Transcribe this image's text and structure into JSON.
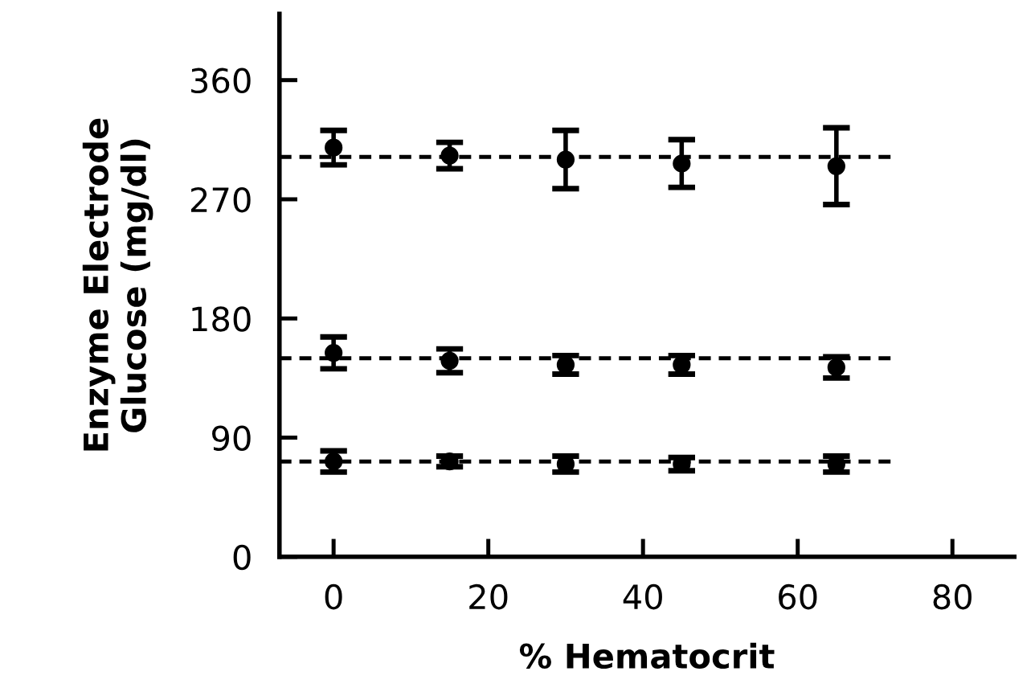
{
  "chart_data": {
    "type": "scatter",
    "xlabel": "% Hematocrit",
    "ylabel": "Enzyme Electrode\nGlucose (mg/dl)",
    "xlim": [
      -7,
      88
    ],
    "ylim": [
      0,
      410
    ],
    "xticks": [
      0,
      20,
      40,
      60,
      80
    ],
    "yticks": [
      0,
      90,
      180,
      270,
      360
    ],
    "grid": false,
    "legend": false,
    "marker": "circle",
    "series": [
      {
        "color": "#000000",
        "x": [
          0,
          15,
          30,
          45,
          65
        ],
        "values": [
          309,
          303,
          300,
          297,
          295
        ],
        "errors": [
          13,
          10,
          22,
          18,
          29
        ]
      },
      {
        "color": "#000000",
        "x": [
          0,
          15,
          30,
          45,
          65
        ],
        "values": [
          154,
          148,
          145,
          145,
          143
        ],
        "errors": [
          12,
          9,
          7,
          7,
          8
        ]
      },
      {
        "color": "#000000",
        "x": [
          0,
          15,
          30,
          45,
          65
        ],
        "values": [
          72,
          72,
          70,
          70,
          70
        ],
        "errors": [
          8,
          4,
          6,
          5,
          6
        ]
      },
      {
        "type": "line",
        "color": "#000000",
        "x": [
          -7,
          72
        ],
        "values": [
          302,
          302
        ],
        "marker": "none",
        "line_style": "dashed"
      },
      {
        "type": "line",
        "color": "#000000",
        "x": [
          -7,
          72
        ],
        "values": [
          150,
          150
        ],
        "marker": "none",
        "line_style": "dashed"
      },
      {
        "type": "line",
        "color": "#000000",
        "x": [
          -7,
          72
        ],
        "values": [
          72,
          72
        ],
        "marker": "none",
        "line_style": "dashed"
      }
    ]
  }
}
